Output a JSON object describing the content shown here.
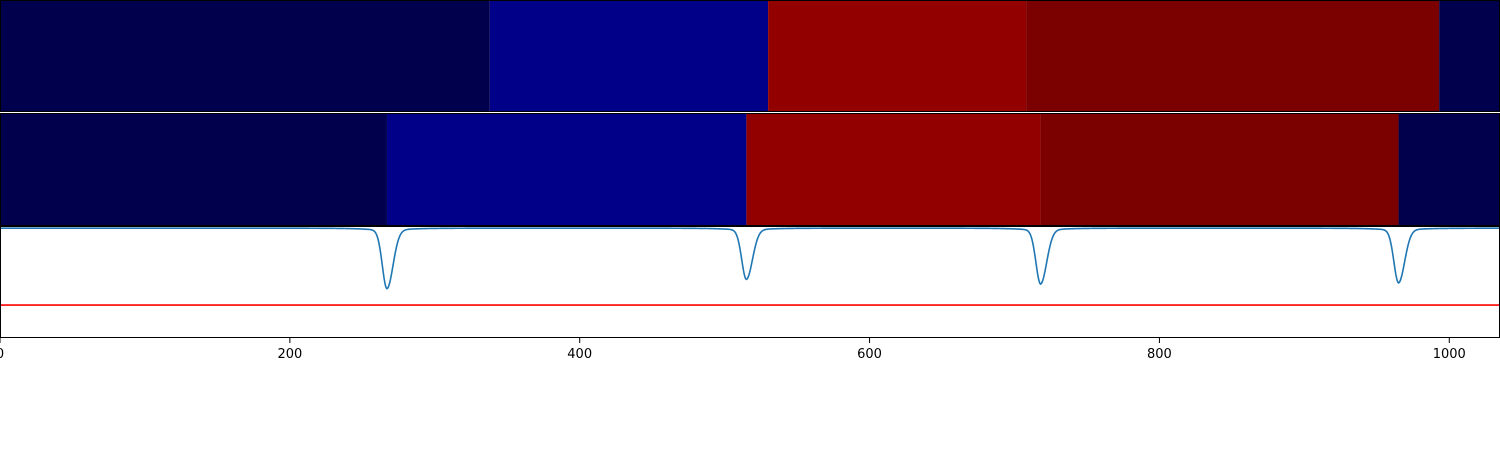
{
  "chart_data": [
    {
      "type": "heatmap",
      "panel": "segments-top",
      "x_range": [
        0,
        1035
      ],
      "segments": [
        {
          "start": 0,
          "end": 338,
          "color": "#00004c"
        },
        {
          "start": 338,
          "end": 530,
          "color": "#000088"
        },
        {
          "start": 530,
          "end": 708,
          "color": "#920000"
        },
        {
          "start": 708,
          "end": 993,
          "color": "#7b0000"
        },
        {
          "start": 993,
          "end": 1035,
          "color": "#00004c"
        }
      ]
    },
    {
      "type": "heatmap",
      "panel": "segments-bottom",
      "x_range": [
        0,
        1035
      ],
      "segments": [
        {
          "start": 0,
          "end": 267,
          "color": "#00004c"
        },
        {
          "start": 267,
          "end": 515,
          "color": "#000088"
        },
        {
          "start": 515,
          "end": 718,
          "color": "#920000"
        },
        {
          "start": 718,
          "end": 965,
          "color": "#7b0000"
        },
        {
          "start": 965,
          "end": 1035,
          "color": "#00004c"
        }
      ]
    },
    {
      "type": "line",
      "panel": "signal",
      "xlim": [
        0,
        1035
      ],
      "ylim": [
        -1.0,
        0.02
      ],
      "xticks": [
        "0",
        "200",
        "400",
        "600",
        "800",
        "1000"
      ],
      "xtick_values": [
        0,
        200,
        400,
        600,
        800,
        1000
      ],
      "series": [
        {
          "color": "#1f77b4",
          "baseline": 0,
          "dips": [
            {
              "center": 267,
              "depth": -0.52
            },
            {
              "center": 515,
              "depth": -0.44
            },
            {
              "center": 718,
              "depth": -0.48
            },
            {
              "center": 965,
              "depth": -0.47
            }
          ]
        }
      ],
      "threshold": {
        "value": -0.7,
        "color": "#ff0000"
      }
    }
  ]
}
